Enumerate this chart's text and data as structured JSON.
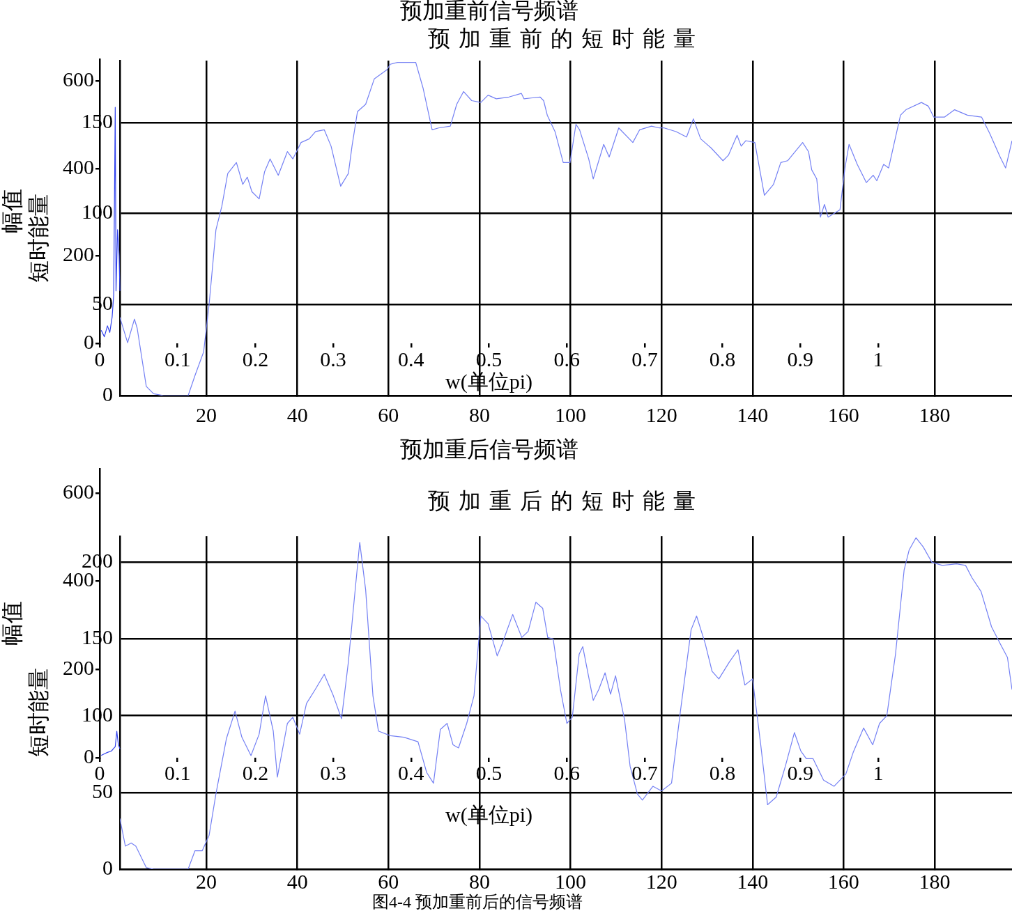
{
  "chart_data": [
    {
      "type": "line",
      "title": "预加重前信号频谱",
      "xlabel": "w(单位pi)",
      "ylabel": "幅值",
      "color": "#3344ee",
      "x": [
        0.002,
        0.006,
        0.01,
        0.013,
        0.016,
        0.018,
        0.02,
        0.021,
        0.023,
        0.025,
        0.026
      ],
      "values": [
        30,
        15,
        40,
        25,
        60,
        110,
        540,
        120,
        260,
        200,
        120
      ],
      "xlim": [
        0,
        1
      ],
      "ylim": [
        0,
        650
      ],
      "xticks": [
        0,
        0.1,
        0.2,
        0.3,
        0.4,
        0.5,
        0.6,
        0.7,
        0.8,
        0.9,
        1
      ],
      "yticks": [
        0,
        200,
        400,
        600
      ]
    },
    {
      "type": "line",
      "title": "预加重前的短时能量",
      "ylabel": "短时能量",
      "color": "#7480f4",
      "x": [
        1,
        2.7,
        4.2,
        4.8,
        6.8,
        8.4,
        10.6,
        16,
        17.5,
        19.4,
        20.6,
        22.1,
        23.4,
        24.7,
        26.6,
        28,
        29,
        30,
        31.6,
        32.8,
        34,
        35.8,
        37.8,
        39,
        40.8,
        42.6,
        44,
        45.9,
        47.4,
        49.5,
        51.2,
        52,
        53.2,
        55,
        56.9,
        59.7,
        60.4,
        62,
        66,
        67.6,
        69.6,
        71,
        73.6,
        75,
        76.5,
        78.3,
        80.3,
        81.9,
        83.7,
        86.5,
        89.2,
        89.8,
        93.3,
        94.1,
        94.9,
        96.6,
        98.4,
        99.9,
        101.2,
        102,
        104,
        105,
        107.3,
        108.5,
        110.6,
        113.7,
        115.2,
        117.8,
        119.5,
        120.6,
        123.2,
        125.5,
        127,
        128.6,
        130.9,
        133.5,
        134.7,
        136.6,
        137.5,
        138.5,
        140.5,
        142.6,
        144.6,
        146.2,
        147.7,
        151,
        152.3,
        153,
        154.1,
        154.9,
        155.8,
        156.6,
        159.2,
        160.3,
        161.2,
        163,
        165,
        166.5,
        167.3,
        168.8,
        169.9,
        172.5,
        173.7,
        177.1,
        178.6,
        179.8,
        182.2,
        184.4,
        187.2,
        190.3,
        192.1,
        194.4,
        195.6,
        197
      ],
      "values": [
        43,
        29,
        42,
        37,
        5,
        1,
        0,
        0,
        11,
        24,
        50,
        91,
        104,
        122,
        128,
        116,
        120,
        112,
        108,
        123,
        130,
        121,
        134,
        130,
        139,
        141,
        145,
        146,
        137,
        115,
        122,
        137,
        156,
        160,
        174,
        179,
        182,
        183,
        183,
        169,
        146,
        147,
        148,
        160,
        167,
        162,
        161,
        165,
        163,
        164,
        166,
        163,
        164,
        162,
        154,
        145,
        128,
        128,
        149,
        146,
        130,
        119,
        138,
        131,
        147,
        139,
        146,
        148,
        147,
        147,
        145,
        142,
        152,
        141,
        136,
        129,
        132,
        143,
        137,
        140,
        139,
        110,
        116,
        128,
        129,
        139,
        134,
        124,
        119,
        98,
        105,
        98,
        102,
        125,
        138,
        127,
        117,
        121,
        118,
        127,
        125,
        154,
        157,
        161,
        159,
        153,
        153,
        157,
        154,
        153,
        144,
        131,
        125,
        140
      ],
      "xlim": [
        1,
        197
      ],
      "ylim": [
        0,
        184
      ],
      "xticks": [
        20,
        40,
        60,
        80,
        100,
        120,
        140,
        160,
        180
      ],
      "yticks": [
        0,
        50,
        100,
        150
      ],
      "grid": true
    },
    {
      "type": "line",
      "title": "预加重后信号频谱",
      "xlabel": "w(单位pi)",
      "ylabel": "幅值",
      "color": "#3344ee",
      "x": [
        0.002,
        0.005,
        0.01,
        0.015,
        0.02,
        0.022,
        0.024,
        0.026
      ],
      "values": [
        5,
        8,
        12,
        15,
        25,
        60,
        30,
        20
      ],
      "xlim": [
        0,
        1
      ],
      "ylim": [
        0,
        655
      ],
      "xticks": [
        0,
        0.1,
        0.2,
        0.3,
        0.4,
        0.5,
        0.6,
        0.7,
        0.8,
        0.9,
        1
      ],
      "yticks": [
        0,
        200,
        400,
        600
      ]
    },
    {
      "type": "line",
      "title": "预加重后的短时能量",
      "ylabel": "短时能量",
      "color": "#7480f4",
      "x": [
        1,
        2.2,
        3.5,
        4.5,
        6.8,
        8.4,
        16,
        17.5,
        19.1,
        20.6,
        22.1,
        24.4,
        26.3,
        27.8,
        29.8,
        31.6,
        33,
        34.7,
        35.6,
        37.8,
        39,
        40.5,
        42,
        43.9,
        45.9,
        47.9,
        49.7,
        51.2,
        52.5,
        53.7,
        55,
        56.6,
        57.8,
        60.4,
        63.4,
        66.5,
        68.4,
        69.9,
        71.4,
        72.9,
        74.2,
        75.4,
        77.2,
        78.8,
        80.3,
        81.9,
        83.9,
        85,
        87.3,
        89.3,
        90.7,
        92.4,
        93.9,
        95,
        96.2,
        97.8,
        99.2,
        100.4,
        101.9,
        102.7,
        105,
        106.2,
        107.6,
        108.8,
        109.9,
        111.9,
        113.1,
        114.7,
        115.8,
        118.1,
        120,
        122.2,
        124.2,
        126.5,
        127.7,
        129.6,
        131.1,
        132.6,
        134.9,
        136.8,
        138.3,
        140,
        141.8,
        143.3,
        145.2,
        147.2,
        149.2,
        150.6,
        151.8,
        153.3,
        155.6,
        157.9,
        160.5,
        162.1,
        164.4,
        166.4,
        167.9,
        169.5,
        171.4,
        173.3,
        174.4,
        175.9,
        177.5,
        179.4,
        181.7,
        184.8,
        186.8,
        188.2,
        190.2,
        192.5,
        194.4,
        196,
        197
      ],
      "values": [
        33,
        15,
        17,
        15,
        1,
        0,
        0,
        12,
        12,
        22,
        49,
        85,
        103,
        86,
        74,
        88,
        113,
        90,
        60,
        95,
        99,
        88,
        108,
        117,
        127,
        113,
        98,
        135,
        176,
        213,
        182,
        113,
        90,
        87,
        86,
        83,
        63,
        56,
        91,
        95,
        81,
        79,
        95,
        113,
        165,
        160,
        139,
        147,
        166,
        151,
        155,
        174,
        170,
        151,
        150,
        117,
        95,
        99,
        140,
        145,
        110,
        117,
        128,
        114,
        126,
        97,
        67,
        49,
        45,
        54,
        51,
        56,
        104,
        156,
        165,
        147,
        129,
        124,
        135,
        143,
        120,
        124,
        81,
        42,
        47,
        67,
        89,
        77,
        72,
        72,
        58,
        54,
        62,
        76,
        92,
        81,
        95,
        100,
        140,
        195,
        208,
        216,
        210,
        200,
        198,
        199,
        198,
        190,
        181,
        158,
        147,
        138,
        117
      ],
      "xlim": [
        1,
        197
      ],
      "ylim": [
        0,
        217
      ],
      "xticks": [
        20,
        40,
        60,
        80,
        100,
        120,
        140,
        160,
        180
      ],
      "yticks": [
        0,
        50,
        100,
        150,
        200
      ],
      "grid": true,
      "annotations": [
        "图4-4 预加重前后的信号频谱"
      ]
    }
  ]
}
